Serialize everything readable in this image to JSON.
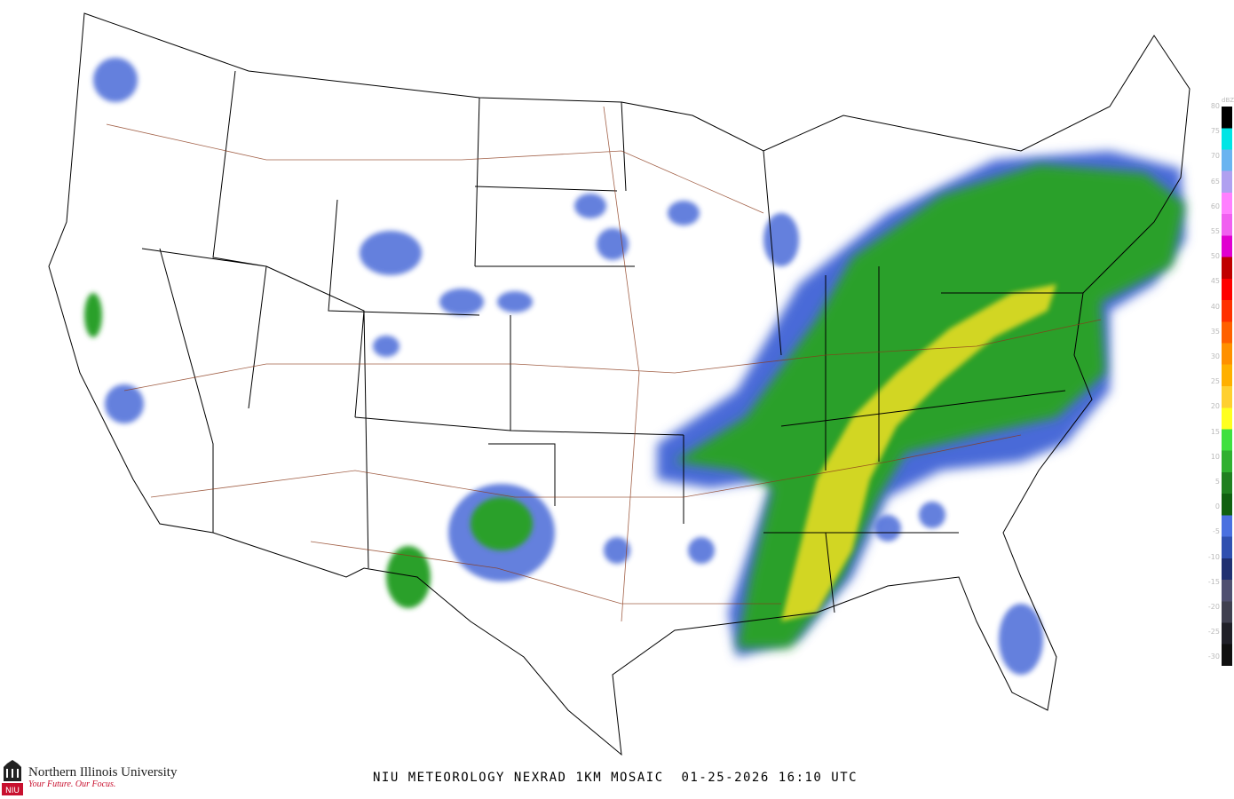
{
  "title": "NIU METEOROLOGY NEXRAD 1KM MOSAIC  01-25-2026 16:10 UTC",
  "branding": {
    "name": "Northern Illinois University",
    "tagline": "Your Future. Our Focus.",
    "mark": "NIU",
    "color": "#c8102e"
  },
  "legend": {
    "unit": "dBZ",
    "ticks": [
      "80",
      "75",
      "70",
      "65",
      "60",
      "55",
      "50",
      "45",
      "40",
      "35",
      "30",
      "25",
      "20",
      "15",
      "10",
      "5",
      "0",
      "-5",
      "-10",
      "-15",
      "-20",
      "-25",
      "-30"
    ],
    "colors": [
      "#000000",
      "#00e5e5",
      "#6ab4f0",
      "#b0a0f0",
      "#ff80ff",
      "#f060f0",
      "#e000d0",
      "#c00000",
      "#ff0000",
      "#ff3000",
      "#ff6000",
      "#ff9000",
      "#ffb000",
      "#ffd030",
      "#ffff20",
      "#40e040",
      "#30b030",
      "#208020",
      "#106010",
      "#4a70e0",
      "#3050b0",
      "#203070",
      "#505070",
      "#404050",
      "#202028",
      "#101010"
    ]
  },
  "map_colors": {
    "border": "#000000",
    "highway": "#8b3a1a",
    "light_echo": "#4a6ad8",
    "moderate_echo": "#2aa02a",
    "heavy_echo": "#f0e020"
  }
}
